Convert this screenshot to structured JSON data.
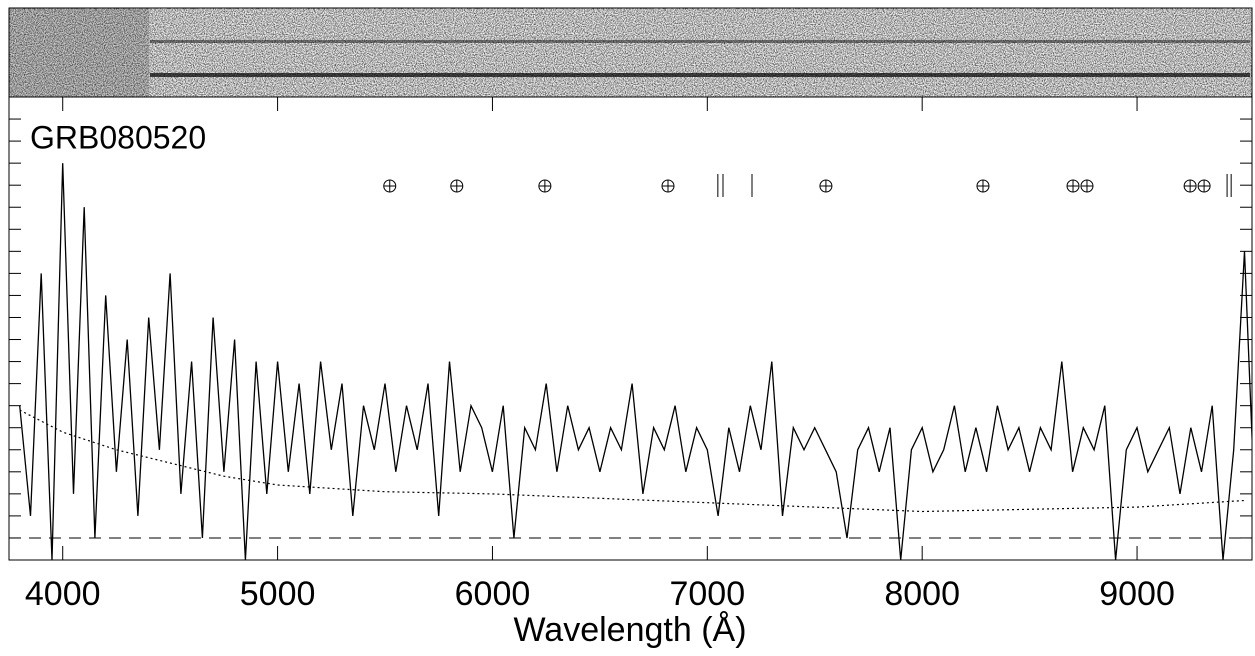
{
  "chart_data": {
    "type": "line",
    "title": "GRB080520",
    "x_label": "Wavelength (Å)",
    "xlim": [
      3750,
      9535
    ],
    "ylim": [
      -1,
      20
    ],
    "xticks": [
      4000,
      5000,
      6000,
      7000,
      8000,
      9000
    ],
    "yticks": [
      0,
      1,
      2,
      3,
      4,
      5,
      6,
      7,
      8,
      9,
      10,
      11,
      12,
      13,
      14,
      15,
      16,
      17,
      18,
      19
    ],
    "reference_line": 0,
    "telluric": [
      5522,
      5834,
      6244,
      6817,
      7552,
      8283,
      8702,
      8767,
      9247,
      9312
    ],
    "line_markers": [
      7049,
      7073,
      7208,
      9419,
      9438
    ],
    "series": [
      {
        "color": "#000000",
        "style": "solid",
        "x": [
          3800,
          3850,
          3900,
          3950,
          4000,
          4050,
          4100,
          4150,
          4200,
          4250,
          4300,
          4350,
          4400,
          4450,
          4500,
          4550,
          4600,
          4650,
          4700,
          4750,
          4800,
          4850,
          4900,
          4950,
          5000,
          5050,
          5100,
          5150,
          5200,
          5250,
          5300,
          5350,
          5400,
          5450,
          5500,
          5550,
          5600,
          5650,
          5700,
          5750,
          5800,
          5850,
          5900,
          5950,
          6000,
          6050,
          6100,
          6150,
          6200,
          6250,
          6300,
          6350,
          6400,
          6450,
          6500,
          6550,
          6600,
          6650,
          6700,
          6750,
          6800,
          6850,
          6900,
          6950,
          7000,
          7050,
          7100,
          7150,
          7200,
          7250,
          7300,
          7350,
          7400,
          7450,
          7500,
          7550,
          7600,
          7650,
          7700,
          7750,
          7800,
          7850,
          7900,
          7950,
          8000,
          8050,
          8100,
          8150,
          8200,
          8250,
          8300,
          8350,
          8400,
          8450,
          8500,
          8550,
          8600,
          8650,
          8700,
          8750,
          8800,
          8850,
          8900,
          8950,
          9000,
          9050,
          9100,
          9150,
          9200,
          9250,
          9300,
          9350,
          9400,
          9450,
          9500,
          9550
        ],
        "values": [
          6,
          1,
          12,
          -1,
          17,
          2,
          15,
          0,
          11,
          3,
          9,
          1,
          10,
          4,
          12,
          2,
          8,
          0,
          10,
          3,
          9,
          -1,
          8,
          2,
          8,
          3,
          7,
          2,
          8,
          4,
          7,
          1,
          6,
          4,
          7,
          3,
          6,
          4,
          7,
          1,
          8,
          3,
          6,
          5,
          3,
          6,
          0,
          5,
          4,
          7,
          3,
          6,
          4,
          5,
          3,
          5,
          4,
          7,
          2,
          5,
          4,
          6,
          3,
          5,
          4,
          1,
          5,
          3,
          6,
          4,
          8,
          1,
          5,
          4,
          5,
          4,
          3,
          0,
          4,
          5,
          3,
          5,
          -1,
          4,
          5,
          3,
          4,
          6,
          3,
          5,
          3,
          6,
          4,
          5,
          3,
          5,
          4,
          8,
          3,
          5,
          4,
          6,
          -1,
          4,
          5,
          3,
          4,
          5,
          2,
          5,
          3,
          6,
          -1,
          4,
          13,
          1
        ]
      },
      {
        "color": "#000000",
        "style": "dotted",
        "x": [
          3800,
          4000,
          4250,
          4500,
          4750,
          5000,
          5500,
          6000,
          6500,
          7000,
          7500,
          8000,
          8500,
          9000,
          9500
        ],
        "values": [
          5.8,
          4.8,
          4,
          3.4,
          2.8,
          2.4,
          2.1,
          2,
          1.8,
          1.6,
          1.4,
          1.2,
          1.3,
          1.4,
          1.7
        ]
      }
    ]
  }
}
